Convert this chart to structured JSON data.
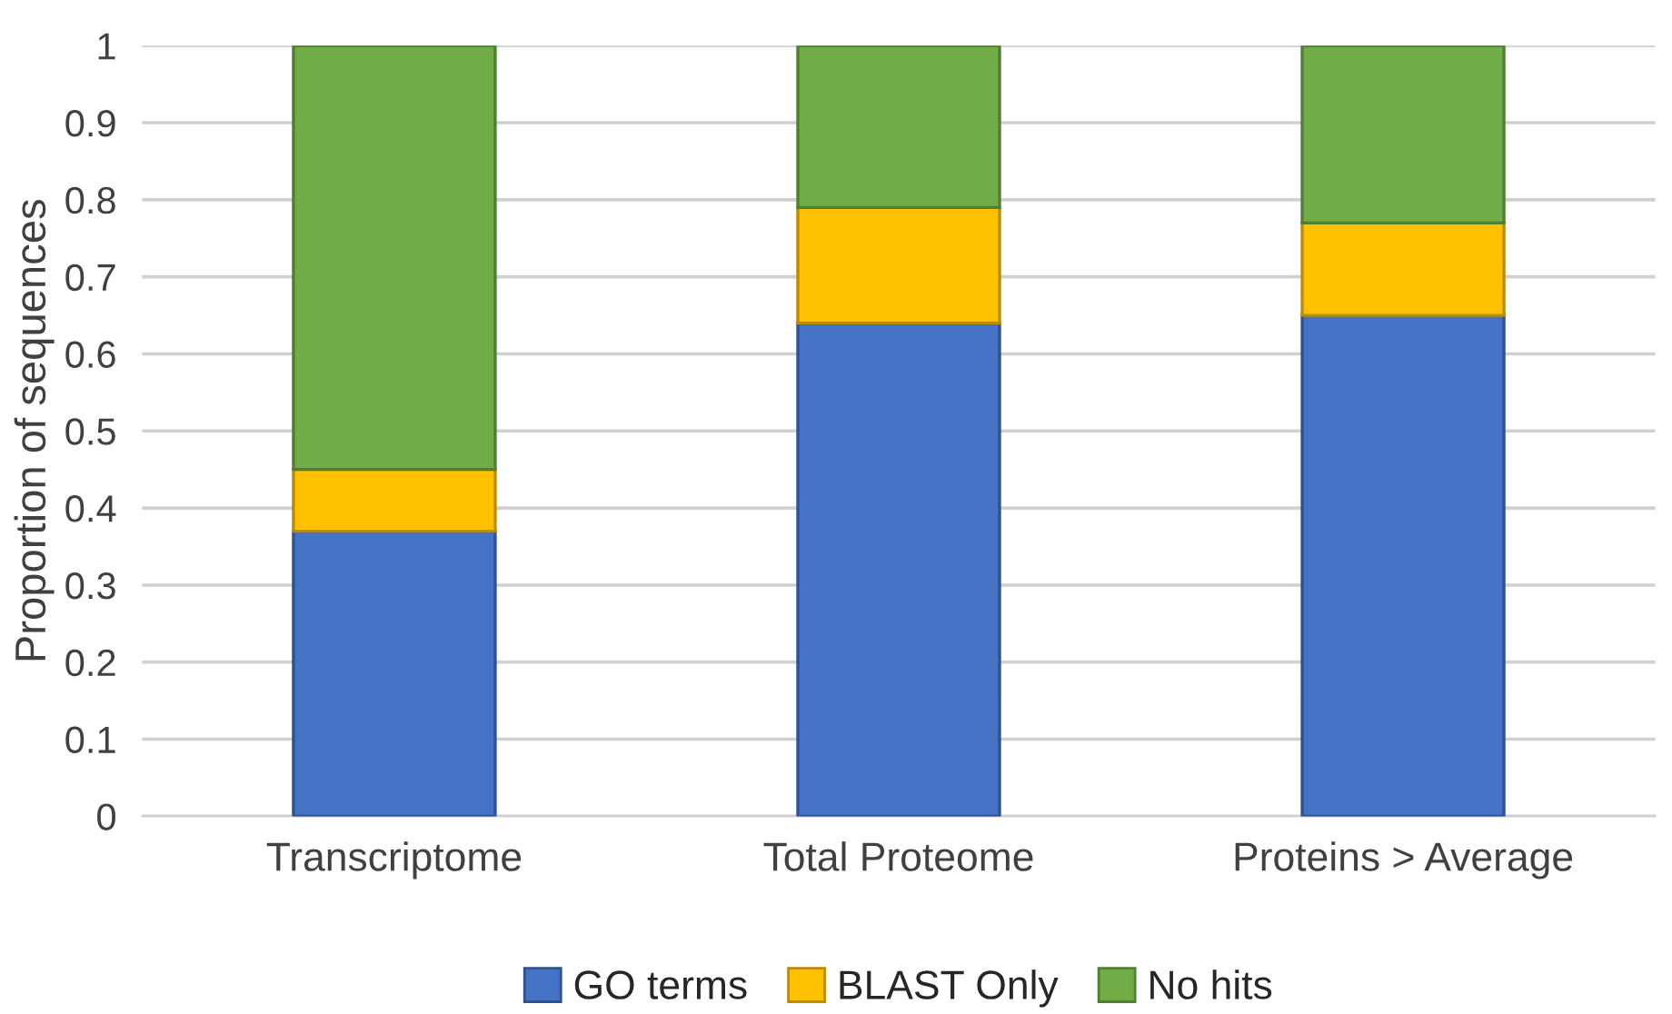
{
  "chart_data": {
    "type": "bar",
    "stacked": true,
    "ylabel": "Proportion of sequences",
    "categories": [
      "Transcriptome",
      "Total Proteome",
      "Proteins > Average"
    ],
    "series": [
      {
        "name": "GO terms",
        "color": "#4472c4",
        "values": [
          0.37,
          0.64,
          0.65
        ]
      },
      {
        "name": "BLAST Only",
        "color": "#ffc000",
        "values": [
          0.08,
          0.15,
          0.12
        ]
      },
      {
        "name": "No hits",
        "color": "#70ad47",
        "values": [
          0.55,
          0.21,
          0.23
        ]
      }
    ],
    "ylim": [
      0,
      1
    ],
    "yticks": [
      0,
      0.1,
      0.2,
      0.3,
      0.4,
      0.5,
      0.6,
      0.7,
      0.8,
      0.9,
      1
    ],
    "grid": "y",
    "legend": "bottom"
  }
}
